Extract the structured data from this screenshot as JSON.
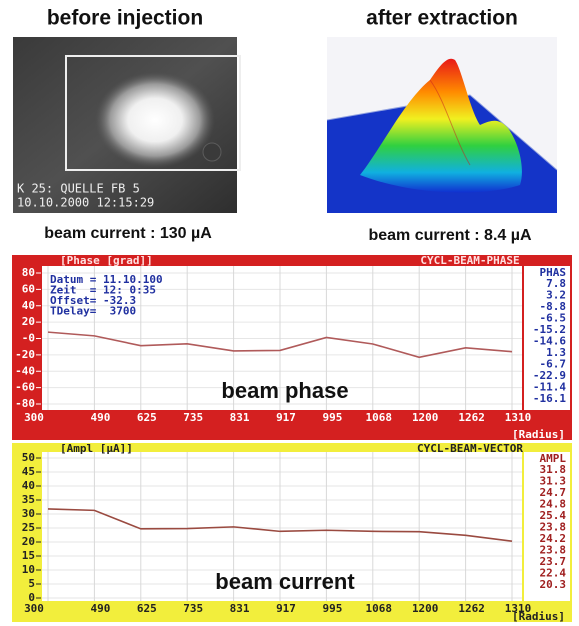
{
  "panels": [
    {
      "title": "before injection",
      "caption": "beam current : 130 µA",
      "overlay": [
        "K 25: QUELLE FB 5",
        "10.10.2000 12:15:29"
      ]
    },
    {
      "title": "after extraction",
      "caption": "beam current : 8.4 µA"
    }
  ],
  "chart_data": [
    {
      "type": "line",
      "title": "CYCL-BEAM-PHASE",
      "ylabel": "[Phase [grad]]",
      "xlabel": "[Radius]",
      "annotation": "beam phase",
      "info": [
        "Datum = 11.10.100",
        "Zeit  = 12: 0:35",
        "Offset= -32.3",
        "TDelay=  3700"
      ],
      "values_header": "PHAS",
      "categories": [
        "300",
        "490",
        "625",
        "735",
        "831",
        "917",
        "995",
        "1068",
        "1200",
        "1262",
        "1310"
      ],
      "values": [
        7.8,
        3.2,
        -8.8,
        -6.5,
        -15.2,
        -14.6,
        1.3,
        -6.7,
        -22.9,
        -11.4,
        -16.1
      ],
      "color": "#b05a5a",
      "ylim": [
        -80,
        80
      ],
      "yticks": [
        -80,
        -60,
        -40,
        -20,
        {
          "value": 0,
          "label": "-0"
        },
        20,
        40,
        60,
        80
      ],
      "grid": true
    },
    {
      "type": "line",
      "title": "CYCL-BEAM-VECTOR",
      "ylabel": "[Ampl [µA]]",
      "xlabel": "[Radius]",
      "annotation": "beam current",
      "values_header": "AMPL",
      "categories": [
        "300",
        "490",
        "625",
        "735",
        "831",
        "917",
        "995",
        "1068",
        "1200",
        "1262",
        "1310"
      ],
      "values": [
        31.8,
        31.3,
        24.7,
        24.8,
        25.4,
        23.8,
        24.2,
        23.8,
        23.7,
        22.4,
        20.3
      ],
      "color": "#9a4a40",
      "ylim": [
        0,
        50
      ],
      "yticks": [
        0,
        5,
        10,
        15,
        20,
        25,
        30,
        35,
        40,
        45,
        50
      ],
      "grid": true
    }
  ]
}
